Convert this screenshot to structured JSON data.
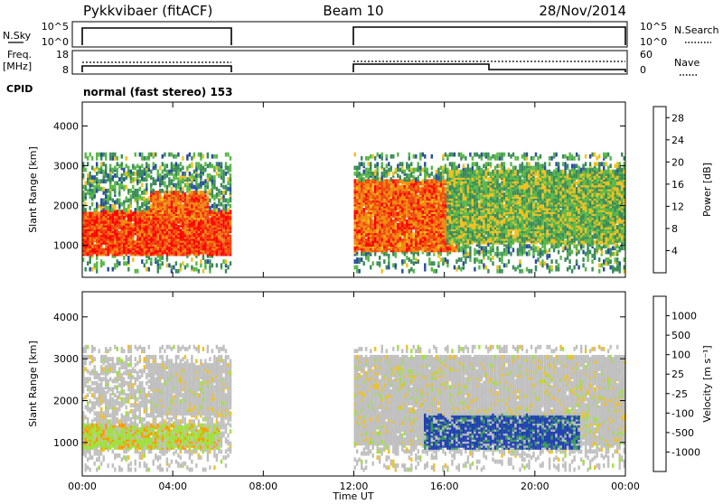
{
  "header": {
    "title": "Pykkvibaer (fitACF)",
    "beam": "Beam 10",
    "date": "28/Nov/2014"
  },
  "sky_panel": {
    "left_label": "N.Sky",
    "right_label": "N.Search",
    "left_ticks": [
      "10^5",
      "10^0"
    ],
    "right_ticks": [
      "10^5",
      "10^0"
    ]
  },
  "freq_panel": {
    "left_label_line1": "Freq.",
    "left_label_line2": "[MHz]",
    "right_label": "Nave",
    "left_ticks": [
      "18",
      "8"
    ],
    "right_ticks": [
      "60",
      "0"
    ]
  },
  "cpid": {
    "label": "CPID",
    "value": "normal (fast stereo) 153"
  },
  "colors": {
    "power_scale": [
      "#0000ff",
      "#2a4ca0",
      "#3b8a5a",
      "#58b848",
      "#f0c020",
      "#f08c10",
      "#f04a10",
      "#ff0000"
    ],
    "velocity_scale": [
      "#ff0000",
      "#ff5a00",
      "#ff9a00",
      "#f0c020",
      "#c0c0c0",
      "#a0e040",
      "#3a9a5a",
      "#2040b0",
      "#0000ff"
    ]
  },
  "chart_data": [
    {
      "type": "heatmap",
      "title": "",
      "xlabel": "",
      "ylabel": "Slant Range [km]",
      "xlim": [
        0,
        24
      ],
      "ylim": [
        200,
        4600
      ],
      "y_ticks": [
        "1000",
        "2000",
        "3000",
        "4000"
      ],
      "colorbar": {
        "label": "Power [dB]",
        "ticks": [
          "4",
          "8",
          "12",
          "16",
          "20",
          "24",
          "28"
        ],
        "range": [
          0,
          30
        ]
      },
      "data_intervals_ut": [
        [
          0,
          6.5
        ],
        [
          12,
          24
        ]
      ],
      "features": [
        {
          "x": [
            0,
            6.5
          ],
          "y": [
            700,
            1800
          ],
          "value": 26
        },
        {
          "x": [
            3,
            5.5
          ],
          "y": [
            1600,
            2300
          ],
          "value": 24
        },
        {
          "x": [
            12,
            16.5
          ],
          "y": [
            800,
            2600
          ],
          "value": 24
        },
        {
          "x": [
            16,
            24
          ],
          "y": [
            1000,
            2800
          ],
          "value": 14
        }
      ]
    },
    {
      "type": "heatmap",
      "title": "",
      "xlabel": "Time UT",
      "ylabel": "Slant Range [km]",
      "xlim": [
        0,
        24
      ],
      "ylim": [
        200,
        4600
      ],
      "x_ticks": [
        "00:00",
        "04:00",
        "08:00",
        "12:00",
        "16:00",
        "20:00",
        "00:00"
      ],
      "y_ticks": [
        "1000",
        "2000",
        "3000",
        "4000"
      ],
      "colorbar": {
        "label": "Velocity [m s⁻¹]",
        "ticks": [
          "1000",
          "500",
          "100",
          "25",
          "-25",
          "-100",
          "-500",
          "-1000"
        ]
      },
      "data_intervals_ut": [
        [
          0,
          6.5
        ],
        [
          12,
          24
        ]
      ],
      "features": [
        {
          "x": [
            0,
            6
          ],
          "y": [
            800,
            1400
          ],
          "value": -150
        },
        {
          "x": [
            3,
            6.5
          ],
          "y": [
            1600,
            2800
          ],
          "value": 0
        },
        {
          "x": [
            12,
            24
          ],
          "y": [
            900,
            3000
          ],
          "value": 0
        },
        {
          "x": [
            15,
            22
          ],
          "y": [
            800,
            1600
          ],
          "value": 600
        }
      ]
    }
  ]
}
